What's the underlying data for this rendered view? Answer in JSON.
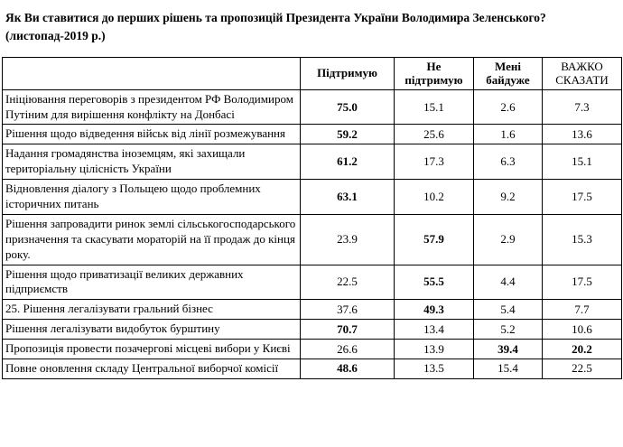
{
  "title": "Як Ви ставитися до перших рішень та пропозицій Президента України Володимира Зеленського?  (листопад-2019 р.)",
  "table": {
    "headers": [
      "Підтримую",
      "Не підтримую",
      "Мені байдуже",
      "ВАЖКО СКАЗАТИ"
    ],
    "rows": [
      {
        "label": "Ініціювання переговорів з президентом РФ Володимиром Путіним для вирішення конфлікту на Донбасі",
        "values": [
          "75.0",
          "15.1",
          "2.6",
          "7.3"
        ],
        "bold": [
          0
        ]
      },
      {
        "label": "Рішення щодо  відведення військ від лінії розмежування",
        "values": [
          "59.2",
          "25.6",
          "1.6",
          "13.6"
        ],
        "bold": [
          0
        ]
      },
      {
        "label": "Надання громадянства іноземцям, які захищали територіальну цілісність України",
        "values": [
          "61.2",
          "17.3",
          "6.3",
          "15.1"
        ],
        "bold": [
          0
        ]
      },
      {
        "label": "Відновлення діалогу з Польщею щодо проблемних історичних питань",
        "values": [
          "63.1",
          "10.2",
          "9.2",
          "17.5"
        ],
        "bold": [
          0
        ]
      },
      {
        "label": " Рішення запровадити ринок землі сільськогосподарського призначення та скасувати мораторій на її продаж до кінця року.",
        "values": [
          "23.9",
          "57.9",
          "2.9",
          "15.3"
        ],
        "bold": [
          1
        ]
      },
      {
        "label": "Рішення щодо  приватизації великих державних підприємств",
        "values": [
          "22.5",
          "55.5",
          "4.4",
          "17.5"
        ],
        "bold": [
          1
        ]
      },
      {
        "label": "25. Рішення легалізувати гральний бізнес",
        "values": [
          "37.6",
          "49.3",
          "5.4",
          "7.7"
        ],
        "bold": [
          1
        ]
      },
      {
        "label": "Рішення легалізувати видобуток бурштину",
        "values": [
          "70.7",
          "13.4",
          "5.2",
          "10.6"
        ],
        "bold": [
          0
        ]
      },
      {
        "label": "Пропозиція провести позачергові місцеві вибори у Києві",
        "values": [
          "26.6",
          "13.9",
          "39.4",
          "20.2"
        ],
        "bold": [
          2,
          3
        ]
      },
      {
        "label": "Повне оновлення  складу Центральної виборчої комісії",
        "values": [
          "48.6",
          "13.5",
          "15.4",
          "22.5"
        ],
        "bold": [
          0
        ]
      }
    ]
  }
}
